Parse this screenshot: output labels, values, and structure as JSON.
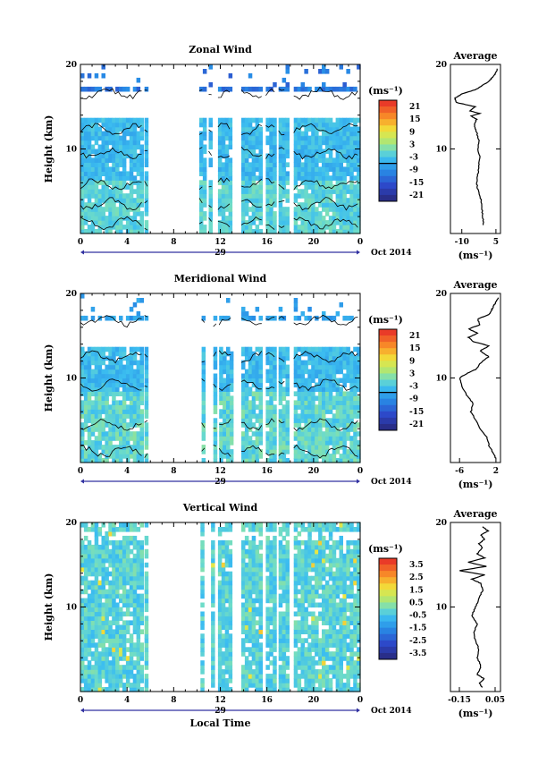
{
  "figure": {
    "xlabel": "Local Time",
    "date_label": "Oct 2014",
    "day_label": "29",
    "x_ticks": [
      "0",
      "4",
      "8",
      "12",
      "16",
      "20",
      "0"
    ],
    "y_ticks": [
      "10",
      "20"
    ],
    "ylabel": "Height (km)",
    "unit_label": "(ms⁻¹)",
    "avg_title": "Average"
  },
  "chart_data": [
    {
      "type": "heatmap",
      "title": "Zonal Wind",
      "xlabel": "",
      "ylabel": "Height (km)",
      "xlim": [
        0,
        24
      ],
      "ylim": [
        0,
        20
      ],
      "colorbar_ticks": [
        "21",
        "15",
        "9",
        "3",
        "-3",
        "-9",
        "-15",
        "-21"
      ],
      "colorbar_range": [
        -24,
        24
      ],
      "data_windows_hours": [
        [
          0,
          5.3
        ],
        [
          5.5,
          5.8
        ],
        [
          10.2,
          10.6
        ],
        [
          11.0,
          11.3
        ],
        [
          11.8,
          13.0
        ],
        [
          13.8,
          15.6
        ],
        [
          15.9,
          16.8
        ],
        [
          17.0,
          17.7
        ],
        [
          18.3,
          24
        ]
      ],
      "average_profile": {
        "title": "Average",
        "xlabel": "(ms⁻¹)",
        "x_ticks": [
          "-10",
          "5"
        ],
        "xlim": [
          -15,
          7
        ],
        "points": [
          [
            -0.5,
            1
          ],
          [
            -0.8,
            2
          ],
          [
            -1.2,
            3
          ],
          [
            -1.5,
            4
          ],
          [
            -2.8,
            5
          ],
          [
            -3.5,
            6
          ],
          [
            -3.0,
            7
          ],
          [
            -2.5,
            8
          ],
          [
            -2.0,
            9
          ],
          [
            -3.0,
            10
          ],
          [
            -2.5,
            11
          ],
          [
            -3.5,
            12
          ],
          [
            -4.5,
            12.8
          ],
          [
            -3.5,
            13.5
          ],
          [
            -6.0,
            13.9
          ],
          [
            -2.0,
            14.2
          ],
          [
            -6.5,
            14.5
          ],
          [
            -4.0,
            15
          ],
          [
            -12.5,
            15.5
          ],
          [
            -13.0,
            16
          ],
          [
            -10.0,
            16.5
          ],
          [
            -4.0,
            17
          ],
          [
            -1.0,
            17.5
          ],
          [
            2.0,
            18
          ],
          [
            3.5,
            18.5
          ],
          [
            5.0,
            19
          ],
          [
            5.5,
            19.5
          ]
        ]
      }
    },
    {
      "type": "heatmap",
      "title": "Meridional Wind",
      "xlabel": "",
      "ylabel": "Height (km)",
      "xlim": [
        0,
        24
      ],
      "ylim": [
        0,
        20
      ],
      "colorbar_ticks": [
        "21",
        "15",
        "9",
        "3",
        "-3",
        "-9",
        "-15",
        "-21"
      ],
      "colorbar_range": [
        -24,
        24
      ],
      "data_windows_hours": [
        [
          0,
          5.3
        ],
        [
          5.5,
          5.8
        ],
        [
          10.4,
          10.7
        ],
        [
          11.4,
          11.7
        ],
        [
          11.9,
          13.0
        ],
        [
          13.8,
          15.6
        ],
        [
          15.9,
          16.8
        ],
        [
          17.0,
          17.7
        ],
        [
          18.3,
          24
        ]
      ],
      "average_profile": {
        "title": "Average",
        "xlabel": "(ms⁻¹)",
        "x_ticks": [
          "-6",
          "2"
        ],
        "xlim": [
          -8,
          3
        ],
        "points": [
          [
            2.0,
            0.5
          ],
          [
            1.5,
            1
          ],
          [
            0.5,
            2
          ],
          [
            0,
            3
          ],
          [
            -1.5,
            4
          ],
          [
            -2.5,
            5
          ],
          [
            -3.5,
            6
          ],
          [
            -3.0,
            7
          ],
          [
            -4.5,
            8
          ],
          [
            -5.5,
            9
          ],
          [
            -6.0,
            10
          ],
          [
            -4.5,
            10.5
          ],
          [
            -2.5,
            11
          ],
          [
            -1.0,
            12
          ],
          [
            0.5,
            12.5
          ],
          [
            -1.5,
            13.2
          ],
          [
            0.5,
            13.8
          ],
          [
            -3.0,
            14.3
          ],
          [
            -4.0,
            14.8
          ],
          [
            -2.0,
            15.3
          ],
          [
            -4.0,
            15.8
          ],
          [
            -1.5,
            16.3
          ],
          [
            -2.0,
            17
          ],
          [
            0.5,
            17.5
          ],
          [
            1.0,
            18
          ],
          [
            1.5,
            18.5
          ],
          [
            2.0,
            19
          ],
          [
            2.5,
            19.5
          ]
        ]
      }
    },
    {
      "type": "heatmap",
      "title": "Vertical Wind",
      "xlabel": "Local Time",
      "ylabel": "Height (km)",
      "xlim": [
        0,
        24
      ],
      "ylim": [
        0,
        20
      ],
      "colorbar_ticks": [
        "3.5",
        "2.5",
        "1.5",
        "0.5",
        "-0.5",
        "-1.5",
        "-2.5",
        "-3.5"
      ],
      "colorbar_range": [
        -4,
        4
      ],
      "data_windows_hours": [
        [
          0,
          5.3
        ],
        [
          5.5,
          5.8
        ],
        [
          10.3,
          10.5
        ],
        [
          11.2,
          11.5
        ],
        [
          11.8,
          13.0
        ],
        [
          13.8,
          15.6
        ],
        [
          15.9,
          16.8
        ],
        [
          17.0,
          17.7
        ],
        [
          18.3,
          24
        ]
      ],
      "average_profile": {
        "title": "Average",
        "xlabel": "(ms⁻¹)",
        "x_ticks": [
          "-0.15",
          "0.05"
        ],
        "xlim": [
          -0.2,
          0.08
        ],
        "points": [
          [
            -0.02,
            0.5
          ],
          [
            -0.04,
            1
          ],
          [
            -0.01,
            1.5
          ],
          [
            -0.05,
            2
          ],
          [
            -0.03,
            3
          ],
          [
            -0.05,
            4
          ],
          [
            -0.04,
            5
          ],
          [
            -0.06,
            6
          ],
          [
            -0.07,
            7
          ],
          [
            -0.05,
            8
          ],
          [
            -0.08,
            9
          ],
          [
            -0.06,
            10
          ],
          [
            -0.04,
            11
          ],
          [
            -0.02,
            12
          ],
          [
            -0.03,
            12.8
          ],
          [
            -0.08,
            13.3
          ],
          [
            -0.01,
            13.8
          ],
          [
            -0.15,
            14.3
          ],
          [
            0.0,
            14.8
          ],
          [
            -0.1,
            15.3
          ],
          [
            -0.01,
            15.8
          ],
          [
            -0.05,
            16.3
          ],
          [
            -0.02,
            17
          ],
          [
            -0.04,
            17.5
          ],
          [
            -0.01,
            18
          ],
          [
            -0.03,
            18.5
          ],
          [
            0.01,
            19
          ],
          [
            -0.02,
            19.5
          ]
        ]
      }
    }
  ]
}
